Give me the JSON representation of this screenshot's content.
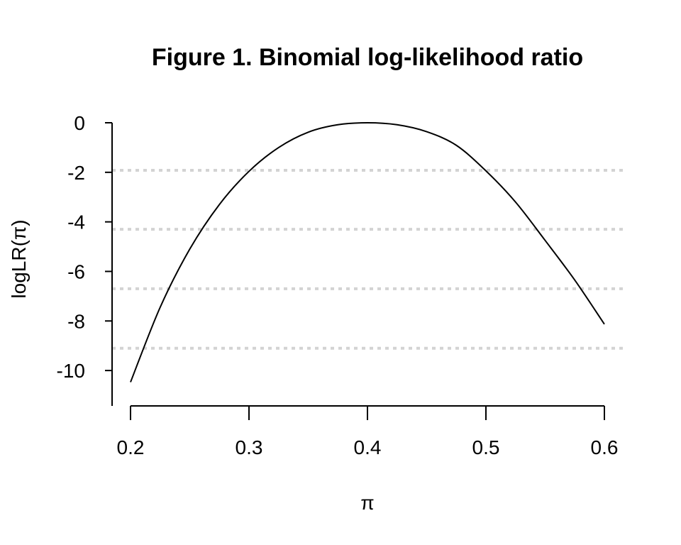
{
  "chart_data": {
    "type": "line",
    "title": "Figure 1. Binomial log-likelihood ratio",
    "xlabel": "π",
    "ylabel": "logLR(π)",
    "xlim": [
      0.2,
      0.6
    ],
    "ylim": [
      -11.4,
      0
    ],
    "x_ticks": [
      0.2,
      0.3,
      0.4,
      0.5,
      0.6
    ],
    "x_tick_labels": [
      "0.2",
      "0.3",
      "0.4",
      "0.5",
      "0.6"
    ],
    "y_ticks": [
      0,
      -2,
      -4,
      -6,
      -8,
      -10
    ],
    "y_tick_labels": [
      "0",
      "-2",
      "-4",
      "-6",
      "-8",
      "-10"
    ],
    "grid": false,
    "reference_lines": {
      "orientation": "horizontal",
      "style": "dotted",
      "color": "#d3d3d3",
      "y_values": [
        -1.92,
        -4.3,
        -6.7,
        -9.1
      ]
    },
    "series": [
      {
        "color": "#000000",
        "x": [
          0.2,
          0.225,
          0.25,
          0.275,
          0.3,
          0.325,
          0.35,
          0.375,
          0.4,
          0.425,
          0.45,
          0.475,
          0.5,
          0.525,
          0.55,
          0.575,
          0.6
        ],
        "y": [
          -10.47,
          -7.45,
          -5.1,
          -3.3,
          -1.96,
          -1.0,
          -0.38,
          -0.08,
          0.0,
          -0.08,
          -0.36,
          -0.91,
          -1.94,
          -3.2,
          -4.75,
          -6.35,
          -8.13
        ]
      }
    ]
  }
}
